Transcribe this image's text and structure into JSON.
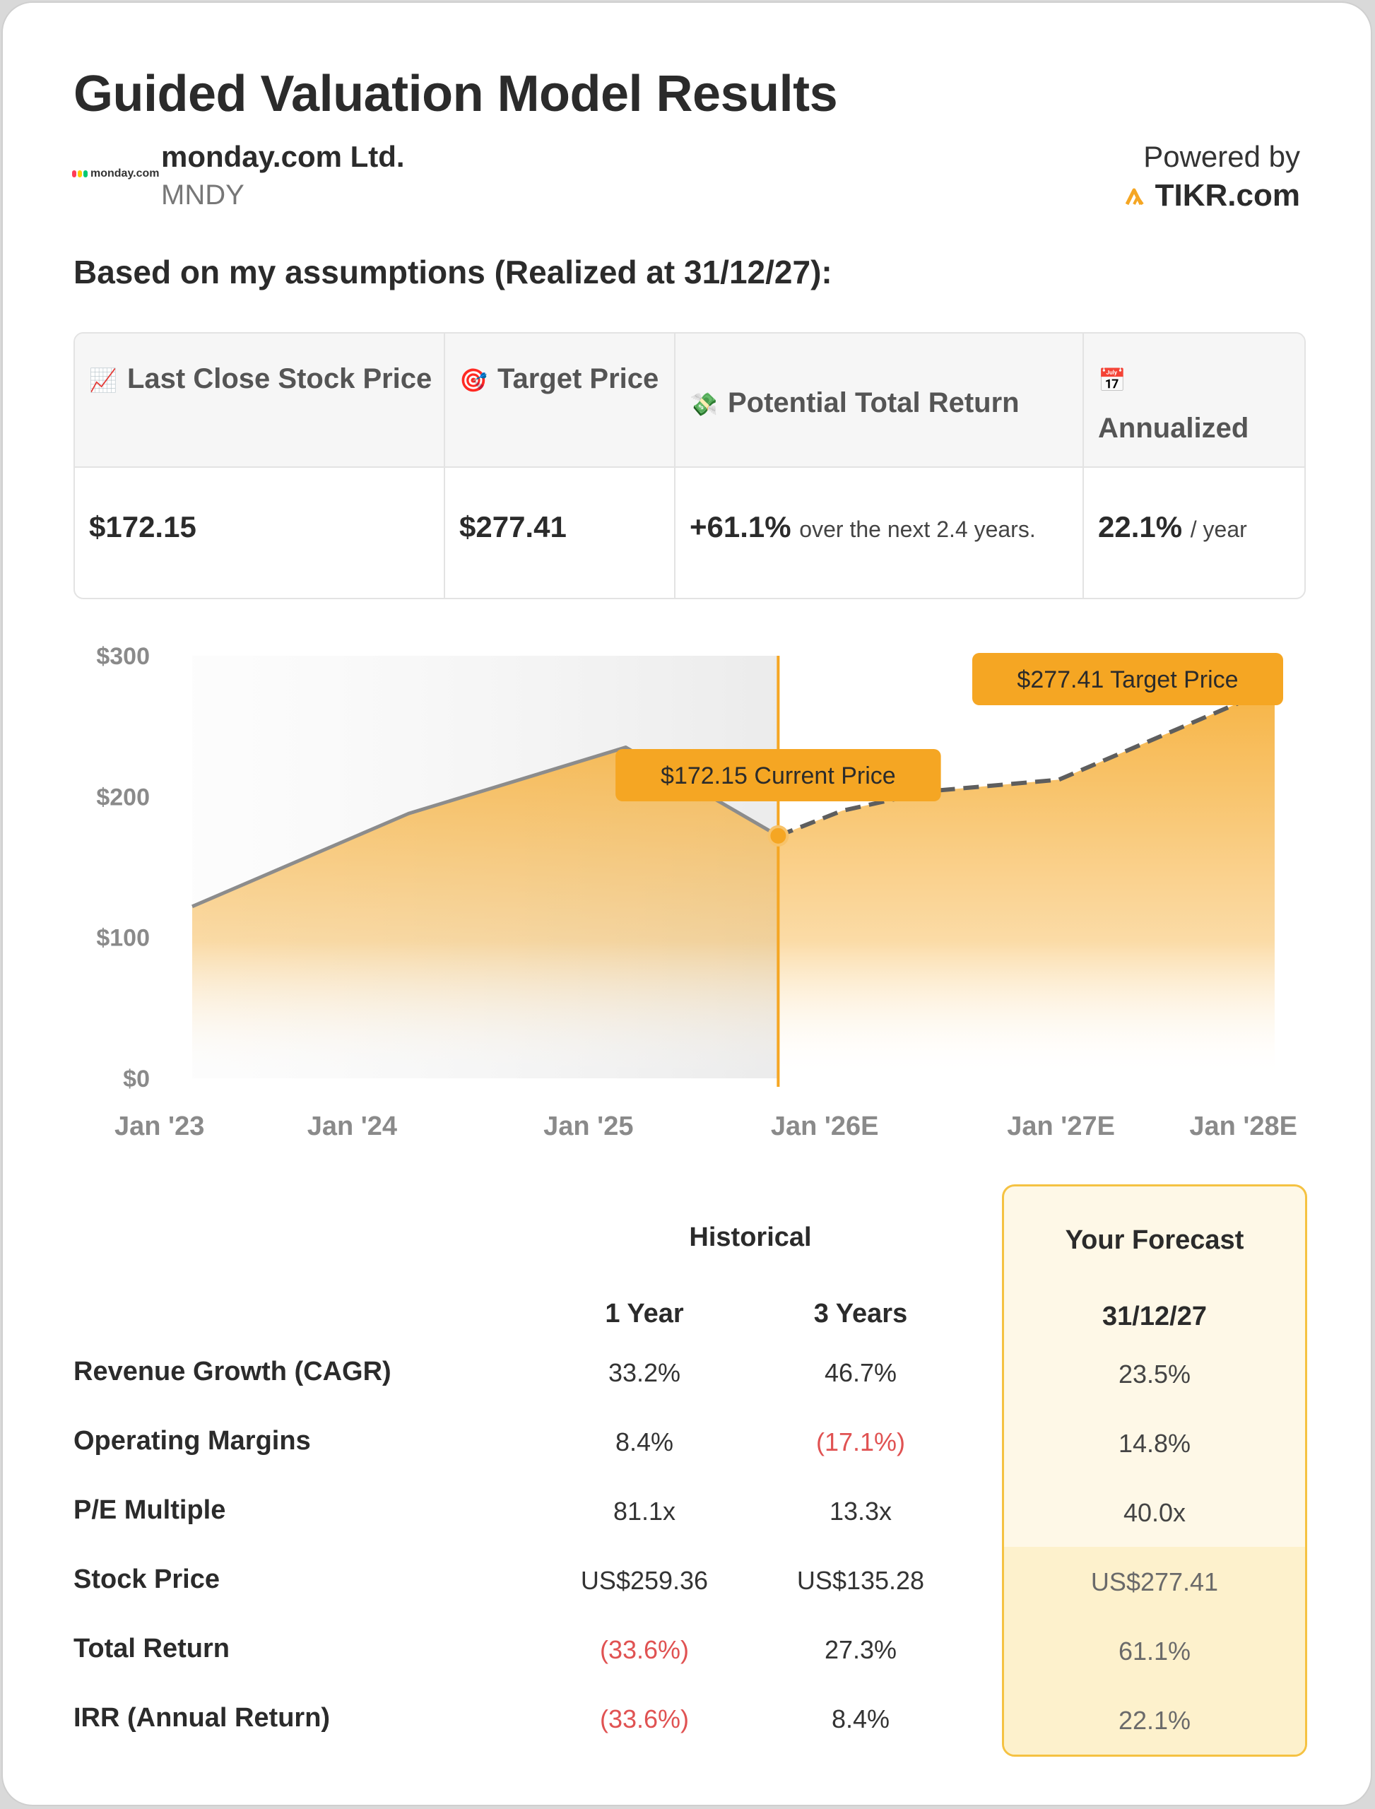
{
  "header": {
    "title": "Guided Valuation Model Results",
    "logo_text": "monday.com",
    "company": "monday.com Ltd.",
    "ticker": "MNDY",
    "powered_by": "Powered by",
    "brand": "TIKR.com",
    "subtitle": "Based on my assumptions (Realized at 31/12/27):"
  },
  "metrics": [
    {
      "icon": "📈",
      "icon_name": "chart-increasing-icon",
      "label": "Last Close Stock Price",
      "value": "$172.15",
      "suffix": ""
    },
    {
      "icon": "🎯",
      "icon_name": "target-icon",
      "label": "Target Price",
      "value": "$277.41",
      "suffix": ""
    },
    {
      "icon": "💸",
      "icon_name": "money-wings-icon",
      "label": "Potential Total Return",
      "value": "+61.1%",
      "suffix": "over the next 2.4 years."
    },
    {
      "icon": "📅",
      "icon_name": "calendar-icon",
      "label": "Annualized",
      "value": "22.1%",
      "suffix": "/ year"
    }
  ],
  "chart_data": {
    "type": "area",
    "x_ticks": [
      "Jan '23",
      "Jan '24",
      "Jan '25",
      "Jan '26E",
      "Jan '27E",
      "Jan '28E"
    ],
    "y_ticks": [
      "$0",
      "$100",
      "$200",
      "$300"
    ],
    "ylim": [
      0,
      300
    ],
    "historical": {
      "dates": [
        "2023-01-01",
        "2024-01-01",
        "2025-01-01",
        "2025-09-15"
      ],
      "values": [
        122,
        188,
        235,
        172.15
      ]
    },
    "forecast": {
      "dates": [
        "2025-09-15",
        "2026-01-01",
        "2026-06-01",
        "2027-01-01",
        "2027-12-31"
      ],
      "values": [
        172.15,
        190,
        204,
        212,
        277.41
      ]
    },
    "annotations": [
      {
        "label": "$172.15 Current Price"
      },
      {
        "label": "$277.41 Target Price"
      }
    ],
    "colors": {
      "line_hist": "#8c8c8c",
      "line_fc": "#5e5e5e",
      "accent": "#f5a623",
      "fill": "#f6b03b"
    }
  },
  "table": {
    "group_historical": "Historical",
    "group_forecast": "Your Forecast",
    "col_1y": "1 Year",
    "col_3y": "3 Years",
    "col_fc": "31/12/27",
    "rows": [
      {
        "label": "Revenue Growth (CAGR)",
        "y1": "33.2%",
        "y3": "46.7%",
        "fc": "23.5%"
      },
      {
        "label": "Operating Margins",
        "y1": "8.4%",
        "y3": "(17.1%)",
        "fc": "14.8%"
      },
      {
        "label": "P/E Multiple",
        "y1": "81.1x",
        "y3": "13.3x",
        "fc": "40.0x"
      },
      {
        "label": "Stock Price",
        "y1": "US$259.36",
        "y3": "US$135.28",
        "fc": "US$277.41"
      },
      {
        "label": "Total Return",
        "y1": "(33.6%)",
        "y3": "27.3%",
        "fc": "61.1%"
      },
      {
        "label": "IRR (Annual Return)",
        "y1": "(33.6%)",
        "y3": "8.4%",
        "fc": "22.1%"
      }
    ]
  }
}
